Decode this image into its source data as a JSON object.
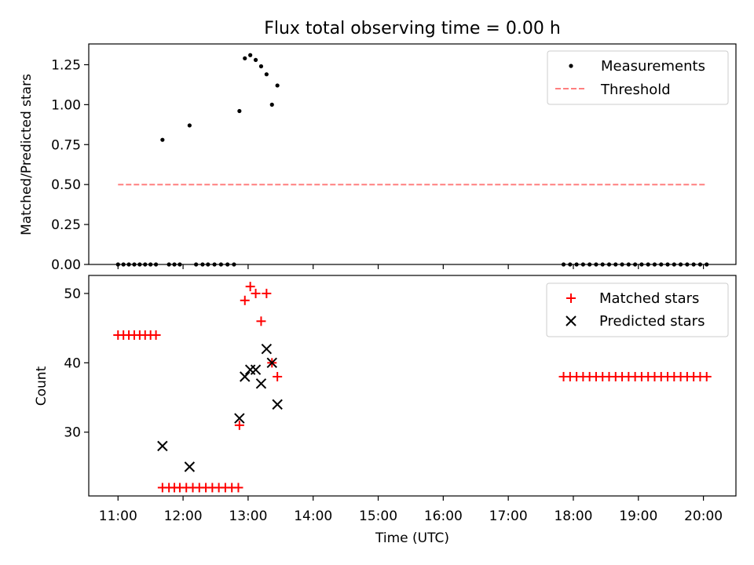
{
  "chart_data": {
    "title": "Flux total observing time = 0.00 h",
    "xlabel": "Time (UTC)",
    "x_tick_labels": [
      "11:00",
      "12:00",
      "13:00",
      "14:00",
      "15:00",
      "16:00",
      "17:00",
      "18:00",
      "19:00",
      "20:00"
    ],
    "x_tick_hours": [
      11,
      12,
      13,
      14,
      15,
      16,
      17,
      18,
      19,
      20
    ],
    "xlim_hours": [
      10.55,
      20.5
    ],
    "panels": [
      {
        "type": "scatter",
        "ylabel": "Matched/Predicted stars",
        "ylim": [
          0,
          1.38
        ],
        "y_ticks": [
          0,
          0.25,
          0.5,
          0.75,
          1.0,
          1.25
        ],
        "y_tick_labels": [
          "0.00",
          "0.25",
          "0.50",
          "0.75",
          "1.00",
          "1.25"
        ],
        "legend_position": "top-right",
        "series": [
          {
            "name": "Measurements",
            "kind": "scatter-dot",
            "color": "#000000",
            "points": [
              {
                "x": "11:00",
                "y": 0
              },
              {
                "x": "11:05",
                "y": 0
              },
              {
                "x": "11:10",
                "y": 0
              },
              {
                "x": "11:15",
                "y": 0
              },
              {
                "x": "11:20",
                "y": 0
              },
              {
                "x": "11:25",
                "y": 0
              },
              {
                "x": "11:30",
                "y": 0
              },
              {
                "x": "11:35",
                "y": 0
              },
              {
                "x": "11:41",
                "y": 0.78
              },
              {
                "x": "11:47",
                "y": 0
              },
              {
                "x": "11:52",
                "y": 0
              },
              {
                "x": "11:57",
                "y": 0
              },
              {
                "x": "12:06",
                "y": 0.87
              },
              {
                "x": "12:12",
                "y": 0
              },
              {
                "x": "12:18",
                "y": 0
              },
              {
                "x": "12:23",
                "y": 0
              },
              {
                "x": "12:29",
                "y": 0
              },
              {
                "x": "12:35",
                "y": 0
              },
              {
                "x": "12:41",
                "y": 0
              },
              {
                "x": "12:47",
                "y": 0
              },
              {
                "x": "12:52",
                "y": 0.96
              },
              {
                "x": "12:57",
                "y": 1.29
              },
              {
                "x": "13:02",
                "y": 1.31
              },
              {
                "x": "13:07",
                "y": 1.28
              },
              {
                "x": "13:12",
                "y": 1.24
              },
              {
                "x": "13:17",
                "y": 1.19
              },
              {
                "x": "13:22",
                "y": 1.0
              },
              {
                "x": "13:27",
                "y": 1.12
              },
              {
                "x": "17:51",
                "y": 0
              },
              {
                "x": "17:57",
                "y": 0
              },
              {
                "x": "18:03",
                "y": 0
              },
              {
                "x": "18:09",
                "y": 0
              },
              {
                "x": "18:15",
                "y": 0
              },
              {
                "x": "18:21",
                "y": 0
              },
              {
                "x": "18:27",
                "y": 0
              },
              {
                "x": "18:33",
                "y": 0
              },
              {
                "x": "18:39",
                "y": 0
              },
              {
                "x": "18:45",
                "y": 0
              },
              {
                "x": "18:51",
                "y": 0
              },
              {
                "x": "18:57",
                "y": 0
              },
              {
                "x": "19:03",
                "y": 0
              },
              {
                "x": "19:09",
                "y": 0
              },
              {
                "x": "19:15",
                "y": 0
              },
              {
                "x": "19:21",
                "y": 0
              },
              {
                "x": "19:27",
                "y": 0
              },
              {
                "x": "19:33",
                "y": 0
              },
              {
                "x": "19:39",
                "y": 0
              },
              {
                "x": "19:45",
                "y": 0
              },
              {
                "x": "19:51",
                "y": 0
              },
              {
                "x": "19:57",
                "y": 0
              },
              {
                "x": "20:03",
                "y": 0
              }
            ]
          },
          {
            "name": "Threshold",
            "kind": "dashed-line",
            "color": "#ff7f7f",
            "points": [
              {
                "x": "11:00",
                "y": 0.5
              },
              {
                "x": "20:03",
                "y": 0.5
              }
            ]
          }
        ]
      },
      {
        "type": "scatter",
        "ylabel": "Count",
        "ylim": [
          20.8,
          52.6
        ],
        "y_ticks": [
          30,
          40,
          50
        ],
        "y_tick_labels": [
          "30",
          "40",
          "50"
        ],
        "legend_position": "top-right",
        "series": [
          {
            "name": "Matched stars",
            "kind": "plus",
            "color": "#ff0000",
            "points": [
              {
                "x": "11:00",
                "y": 44
              },
              {
                "x": "11:05",
                "y": 44
              },
              {
                "x": "11:10",
                "y": 44
              },
              {
                "x": "11:15",
                "y": 44
              },
              {
                "x": "11:20",
                "y": 44
              },
              {
                "x": "11:25",
                "y": 44
              },
              {
                "x": "11:30",
                "y": 44
              },
              {
                "x": "11:35",
                "y": 44
              },
              {
                "x": "11:41",
                "y": 22
              },
              {
                "x": "11:47",
                "y": 22
              },
              {
                "x": "11:52",
                "y": 22
              },
              {
                "x": "11:57",
                "y": 22
              },
              {
                "x": "12:03",
                "y": 22
              },
              {
                "x": "12:09",
                "y": 22
              },
              {
                "x": "12:15",
                "y": 22
              },
              {
                "x": "12:21",
                "y": 22
              },
              {
                "x": "12:27",
                "y": 22
              },
              {
                "x": "12:33",
                "y": 22
              },
              {
                "x": "12:39",
                "y": 22
              },
              {
                "x": "12:45",
                "y": 22
              },
              {
                "x": "12:51",
                "y": 22
              },
              {
                "x": "12:52",
                "y": 31
              },
              {
                "x": "12:57",
                "y": 49
              },
              {
                "x": "13:02",
                "y": 51
              },
              {
                "x": "13:07",
                "y": 50
              },
              {
                "x": "13:12",
                "y": 46
              },
              {
                "x": "13:17",
                "y": 50
              },
              {
                "x": "13:22",
                "y": 40
              },
              {
                "x": "13:27",
                "y": 38
              },
              {
                "x": "17:51",
                "y": 38
              },
              {
                "x": "17:57",
                "y": 38
              },
              {
                "x": "18:03",
                "y": 38
              },
              {
                "x": "18:09",
                "y": 38
              },
              {
                "x": "18:15",
                "y": 38
              },
              {
                "x": "18:21",
                "y": 38
              },
              {
                "x": "18:27",
                "y": 38
              },
              {
                "x": "18:33",
                "y": 38
              },
              {
                "x": "18:39",
                "y": 38
              },
              {
                "x": "18:45",
                "y": 38
              },
              {
                "x": "18:51",
                "y": 38
              },
              {
                "x": "18:57",
                "y": 38
              },
              {
                "x": "19:03",
                "y": 38
              },
              {
                "x": "19:09",
                "y": 38
              },
              {
                "x": "19:15",
                "y": 38
              },
              {
                "x": "19:21",
                "y": 38
              },
              {
                "x": "19:27",
                "y": 38
              },
              {
                "x": "19:33",
                "y": 38
              },
              {
                "x": "19:39",
                "y": 38
              },
              {
                "x": "19:45",
                "y": 38
              },
              {
                "x": "19:51",
                "y": 38
              },
              {
                "x": "19:57",
                "y": 38
              },
              {
                "x": "20:03",
                "y": 38
              }
            ]
          },
          {
            "name": "Predicted stars",
            "kind": "x",
            "color": "#000000",
            "points": [
              {
                "x": "11:41",
                "y": 28
              },
              {
                "x": "12:06",
                "y": 25
              },
              {
                "x": "12:52",
                "y": 32
              },
              {
                "x": "12:57",
                "y": 38
              },
              {
                "x": "13:02",
                "y": 39
              },
              {
                "x": "13:07",
                "y": 39
              },
              {
                "x": "13:12",
                "y": 37
              },
              {
                "x": "13:17",
                "y": 42
              },
              {
                "x": "13:22",
                "y": 40
              },
              {
                "x": "13:27",
                "y": 34
              }
            ]
          }
        ]
      }
    ]
  }
}
